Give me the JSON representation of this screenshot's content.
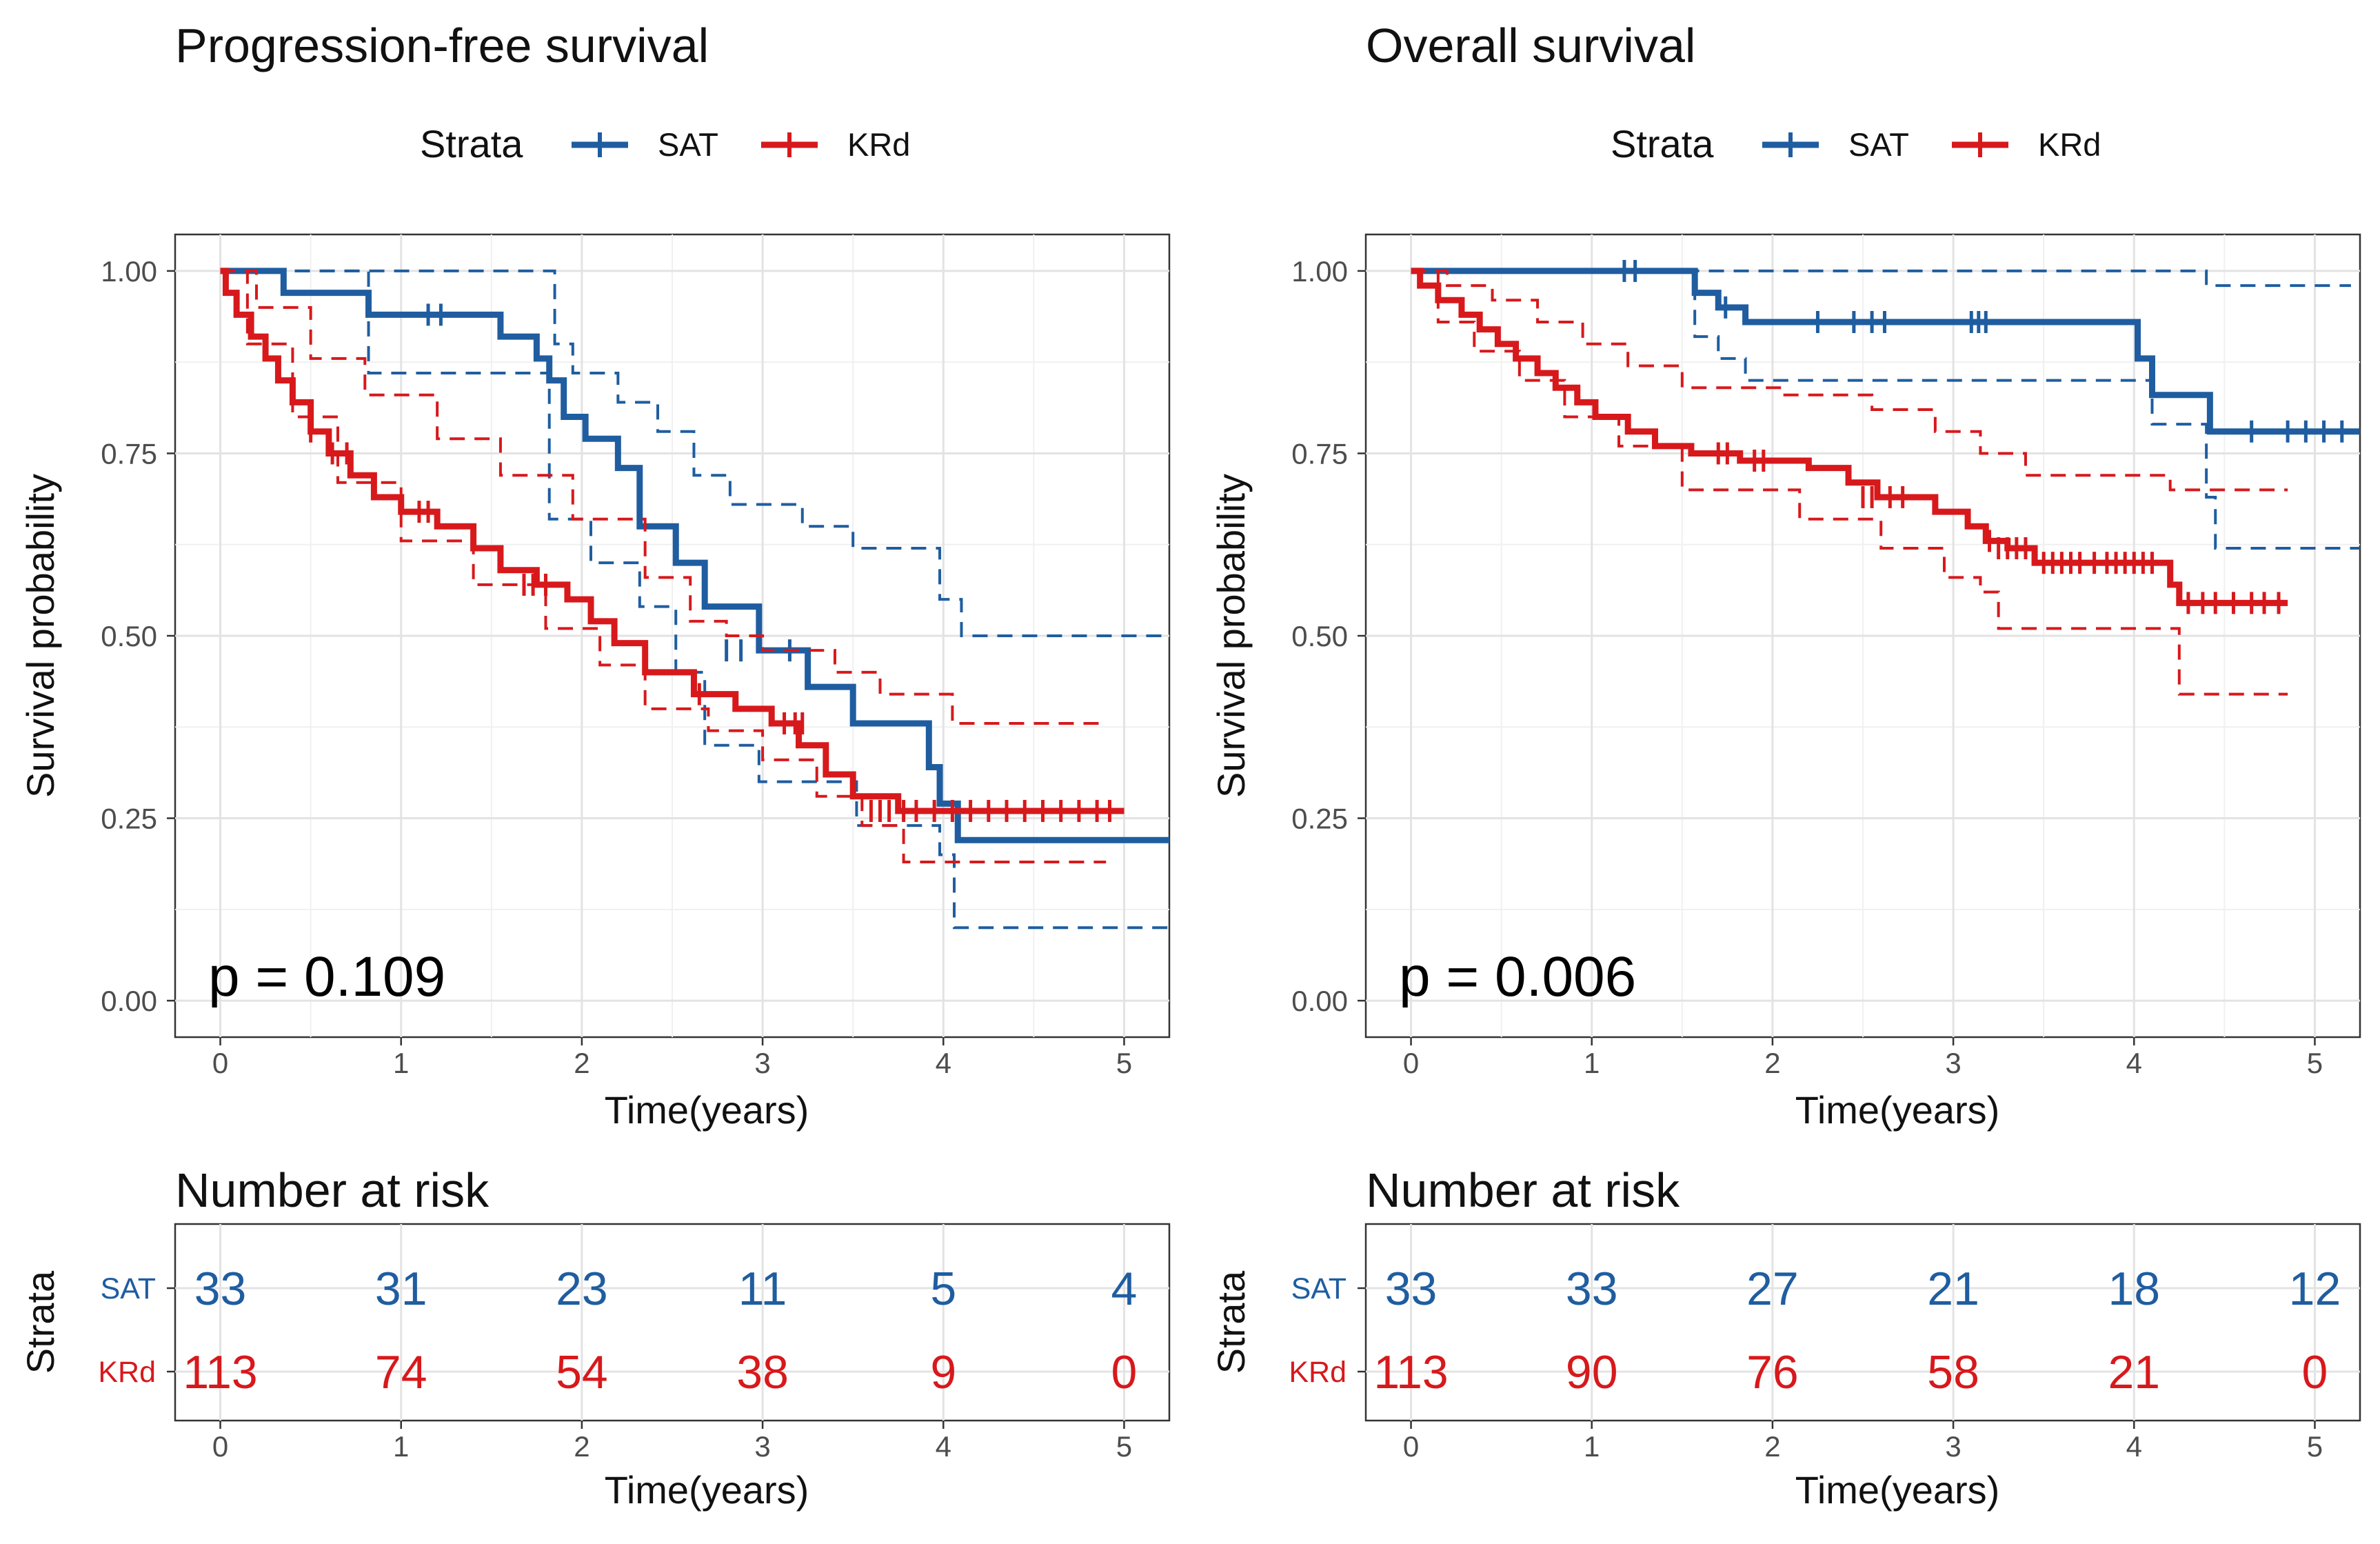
{
  "colors": {
    "SAT": "#1f5da0",
    "KRd": "#d7191c"
  },
  "chart_data": [
    {
      "type": "line",
      "subtype": "kaplan-meier",
      "title": "Progression-free survival",
      "legend": {
        "title": "Strata",
        "entries": [
          "SAT",
          "KRd"
        ],
        "placement": "top"
      },
      "xlabel": "Time(years)",
      "ylabel": "Survival probability",
      "xlim": [
        -0.25,
        5.25
      ],
      "ylim": [
        -0.05,
        1.05
      ],
      "xticks": [
        "0",
        "1",
        "2",
        "3",
        "4",
        "5"
      ],
      "yticks": [
        "0.00",
        "0.25",
        "0.50",
        "0.75",
        "1.00"
      ],
      "annotation": "p = 0.109",
      "series": [
        {
          "name": "SAT",
          "x": [
            0,
            0.35,
            0.82,
            1.55,
            1.75,
            1.82,
            1.9,
            2.02,
            2.2,
            2.32,
            2.52,
            2.68,
            2.98,
            3.25,
            3.5,
            3.92,
            3.98,
            4.08,
            5.25
          ],
          "y": [
            1.0,
            0.97,
            0.94,
            0.91,
            0.88,
            0.85,
            0.8,
            0.77,
            0.73,
            0.65,
            0.6,
            0.54,
            0.48,
            0.43,
            0.38,
            0.32,
            0.27,
            0.22,
            0.22
          ],
          "upper_x": [
            0,
            1.85,
            1.95,
            2.2,
            2.42,
            2.62,
            2.82,
            3.22,
            3.5,
            3.98,
            4.1,
            5.25
          ],
          "upper_y": [
            1.0,
            0.9,
            0.86,
            0.82,
            0.78,
            0.72,
            0.68,
            0.65,
            0.62,
            0.55,
            0.5,
            0.5
          ],
          "lower_x": [
            0,
            0.82,
            1.55,
            1.82,
            2.05,
            2.32,
            2.52,
            2.68,
            2.98,
            3.25,
            3.52,
            3.98,
            4.06,
            5.25
          ],
          "lower_y": [
            1.0,
            0.86,
            0.86,
            0.66,
            0.6,
            0.54,
            0.45,
            0.35,
            0.3,
            0.3,
            0.24,
            0.2,
            0.1,
            0.1
          ],
          "censor_x": [
            1.15,
            1.22,
            2.8,
            2.88,
            3.15
          ],
          "censor_y": [
            0.94,
            0.94,
            0.48,
            0.48,
            0.48
          ]
        },
        {
          "name": "KRd",
          "x": [
            0,
            0.03,
            0.09,
            0.17,
            0.25,
            0.32,
            0.4,
            0.5,
            0.6,
            0.72,
            0.85,
            1.0,
            1.2,
            1.4,
            1.55,
            1.75,
            1.92,
            2.05,
            2.18,
            2.35,
            2.62,
            2.85,
            3.05,
            3.2,
            3.35,
            3.5,
            3.75,
            5.0
          ],
          "y": [
            1.0,
            0.97,
            0.94,
            0.91,
            0.88,
            0.85,
            0.82,
            0.78,
            0.75,
            0.72,
            0.69,
            0.67,
            0.65,
            0.62,
            0.59,
            0.57,
            0.55,
            0.52,
            0.49,
            0.45,
            0.42,
            0.4,
            0.38,
            0.35,
            0.31,
            0.28,
            0.26,
            0.26
          ],
          "upper_x": [
            0,
            0.2,
            0.5,
            0.8,
            1.2,
            1.55,
            1.95,
            2.35,
            2.6,
            2.8,
            3.0,
            3.4,
            3.65,
            4.05,
            4.9
          ],
          "upper_y": [
            1.0,
            0.95,
            0.88,
            0.83,
            0.77,
            0.72,
            0.66,
            0.58,
            0.52,
            0.5,
            0.48,
            0.45,
            0.42,
            0.38,
            0.38
          ],
          "lower_x": [
            0,
            0.15,
            0.4,
            0.65,
            1.0,
            1.4,
            1.8,
            2.1,
            2.35,
            2.7,
            3.0,
            3.3,
            3.55,
            3.78,
            4.9
          ],
          "lower_y": [
            1.0,
            0.9,
            0.8,
            0.71,
            0.63,
            0.57,
            0.51,
            0.46,
            0.4,
            0.37,
            0.33,
            0.28,
            0.24,
            0.19,
            0.19
          ],
          "censor_x": [
            0.5,
            0.62,
            0.7,
            1.1,
            1.15,
            1.68,
            1.73,
            1.8,
            2.65,
            3.12,
            3.18,
            3.22,
            3.6,
            3.65,
            3.7,
            3.78,
            3.85,
            3.95,
            4.05,
            4.15,
            4.25,
            4.35,
            4.45,
            4.55,
            4.65,
            4.75,
            4.85,
            4.92
          ],
          "censor_y": [
            0.78,
            0.75,
            0.75,
            0.67,
            0.67,
            0.57,
            0.57,
            0.57,
            0.42,
            0.38,
            0.38,
            0.38,
            0.26,
            0.26,
            0.26,
            0.26,
            0.26,
            0.26,
            0.26,
            0.26,
            0.26,
            0.26,
            0.26,
            0.26,
            0.26,
            0.26,
            0.26,
            0.26
          ]
        }
      ]
    },
    {
      "type": "line",
      "subtype": "kaplan-meier",
      "title": "Overall survival",
      "legend": {
        "title": "Strata",
        "entries": [
          "SAT",
          "KRd"
        ],
        "placement": "top"
      },
      "xlabel": "Time(years)",
      "ylabel": "Survival probability",
      "xlim": [
        -0.25,
        5.25
      ],
      "ylim": [
        -0.05,
        1.05
      ],
      "xticks": [
        "0",
        "1",
        "2",
        "3",
        "4",
        "5"
      ],
      "yticks": [
        "0.00",
        "0.25",
        "0.50",
        "0.75",
        "1.00"
      ],
      "annotation": "p = 0.006",
      "series": [
        {
          "name": "SAT",
          "x": [
            0,
            1.57,
            1.7,
            1.85,
            4.02,
            4.1,
            4.2,
            4.42,
            5.25
          ],
          "y": [
            1.0,
            0.97,
            0.95,
            0.93,
            0.88,
            0.83,
            0.83,
            0.78,
            0.78
          ],
          "upper_x": [
            0,
            4.4,
            5.2
          ],
          "upper_y": [
            1.0,
            0.98,
            0.98
          ],
          "lower_x": [
            0,
            1.57,
            1.7,
            1.85,
            4.02,
            4.1,
            4.4,
            4.45,
            5.25
          ],
          "lower_y": [
            1.0,
            0.91,
            0.88,
            0.85,
            0.85,
            0.79,
            0.69,
            0.62,
            0.62
          ],
          "censor_x": [
            1.18,
            1.24,
            1.74,
            2.25,
            2.45,
            2.55,
            2.62,
            3.1,
            3.14,
            3.18,
            4.65,
            4.85,
            4.95,
            5.05,
            5.15
          ],
          "censor_y": [
            1.0,
            1.0,
            0.95,
            0.93,
            0.93,
            0.93,
            0.93,
            0.93,
            0.93,
            0.93,
            0.78,
            0.78,
            0.78,
            0.78,
            0.78
          ]
        },
        {
          "name": "KRd",
          "x": [
            0,
            0.05,
            0.15,
            0.28,
            0.38,
            0.48,
            0.58,
            0.7,
            0.8,
            0.92,
            1.02,
            1.2,
            1.35,
            1.55,
            1.82,
            2.2,
            2.42,
            2.58,
            2.9,
            3.08,
            3.18,
            3.3,
            3.45,
            4.2,
            4.25,
            4.85
          ],
          "y": [
            1.0,
            0.98,
            0.96,
            0.94,
            0.92,
            0.9,
            0.88,
            0.86,
            0.84,
            0.82,
            0.8,
            0.78,
            0.76,
            0.75,
            0.74,
            0.73,
            0.71,
            0.69,
            0.67,
            0.65,
            0.63,
            0.62,
            0.6,
            0.57,
            0.545,
            0.545
          ],
          "upper_x": [
            0,
            0.2,
            0.45,
            0.7,
            0.95,
            1.2,
            1.5,
            2.05,
            2.55,
            2.9,
            3.15,
            3.4,
            4.2,
            4.85
          ],
          "upper_y": [
            1.0,
            0.98,
            0.96,
            0.93,
            0.9,
            0.87,
            0.84,
            0.83,
            0.81,
            0.78,
            0.75,
            0.72,
            0.7,
            0.7
          ],
          "lower_x": [
            0,
            0.15,
            0.35,
            0.6,
            0.85,
            1.15,
            1.5,
            2.15,
            2.6,
            2.95,
            3.15,
            3.25,
            4.2,
            4.25,
            4.85
          ],
          "lower_y": [
            1.0,
            0.93,
            0.89,
            0.85,
            0.8,
            0.76,
            0.7,
            0.66,
            0.62,
            0.58,
            0.56,
            0.51,
            0.51,
            0.42,
            0.42
          ],
          "censor_x": [
            1.7,
            1.75,
            1.9,
            1.95,
            2.5,
            2.55,
            2.65,
            2.72,
            3.2,
            3.25,
            3.3,
            3.35,
            3.4,
            3.5,
            3.55,
            3.6,
            3.65,
            3.7,
            3.78,
            3.85,
            3.9,
            3.95,
            4.0,
            4.05,
            4.1,
            4.3,
            4.38,
            4.45,
            4.55,
            4.65,
            4.72,
            4.8
          ],
          "censor_y": [
            0.75,
            0.75,
            0.74,
            0.74,
            0.69,
            0.69,
            0.69,
            0.69,
            0.63,
            0.62,
            0.62,
            0.62,
            0.62,
            0.6,
            0.6,
            0.6,
            0.6,
            0.6,
            0.6,
            0.6,
            0.6,
            0.6,
            0.6,
            0.6,
            0.6,
            0.545,
            0.545,
            0.545,
            0.545,
            0.545,
            0.545,
            0.545
          ]
        }
      ]
    }
  ],
  "risk_tables": [
    {
      "title": "Number at risk",
      "ylabel": "Strata",
      "xlabel": "Time(years)",
      "xticks": [
        "0",
        "1",
        "2",
        "3",
        "4",
        "5"
      ],
      "rows": [
        {
          "label": "SAT",
          "values": [
            "33",
            "31",
            "23",
            "11",
            "5",
            "4"
          ]
        },
        {
          "label": "KRd",
          "values": [
            "113",
            "74",
            "54",
            "38",
            "9",
            "0"
          ]
        }
      ]
    },
    {
      "title": "Number at risk",
      "ylabel": "Strata",
      "xlabel": "Time(years)",
      "xticks": [
        "0",
        "1",
        "2",
        "3",
        "4",
        "5"
      ],
      "rows": [
        {
          "label": "SAT",
          "values": [
            "33",
            "33",
            "27",
            "21",
            "18",
            "12"
          ]
        },
        {
          "label": "KRd",
          "values": [
            "113",
            "90",
            "76",
            "58",
            "21",
            "0"
          ]
        }
      ]
    }
  ]
}
